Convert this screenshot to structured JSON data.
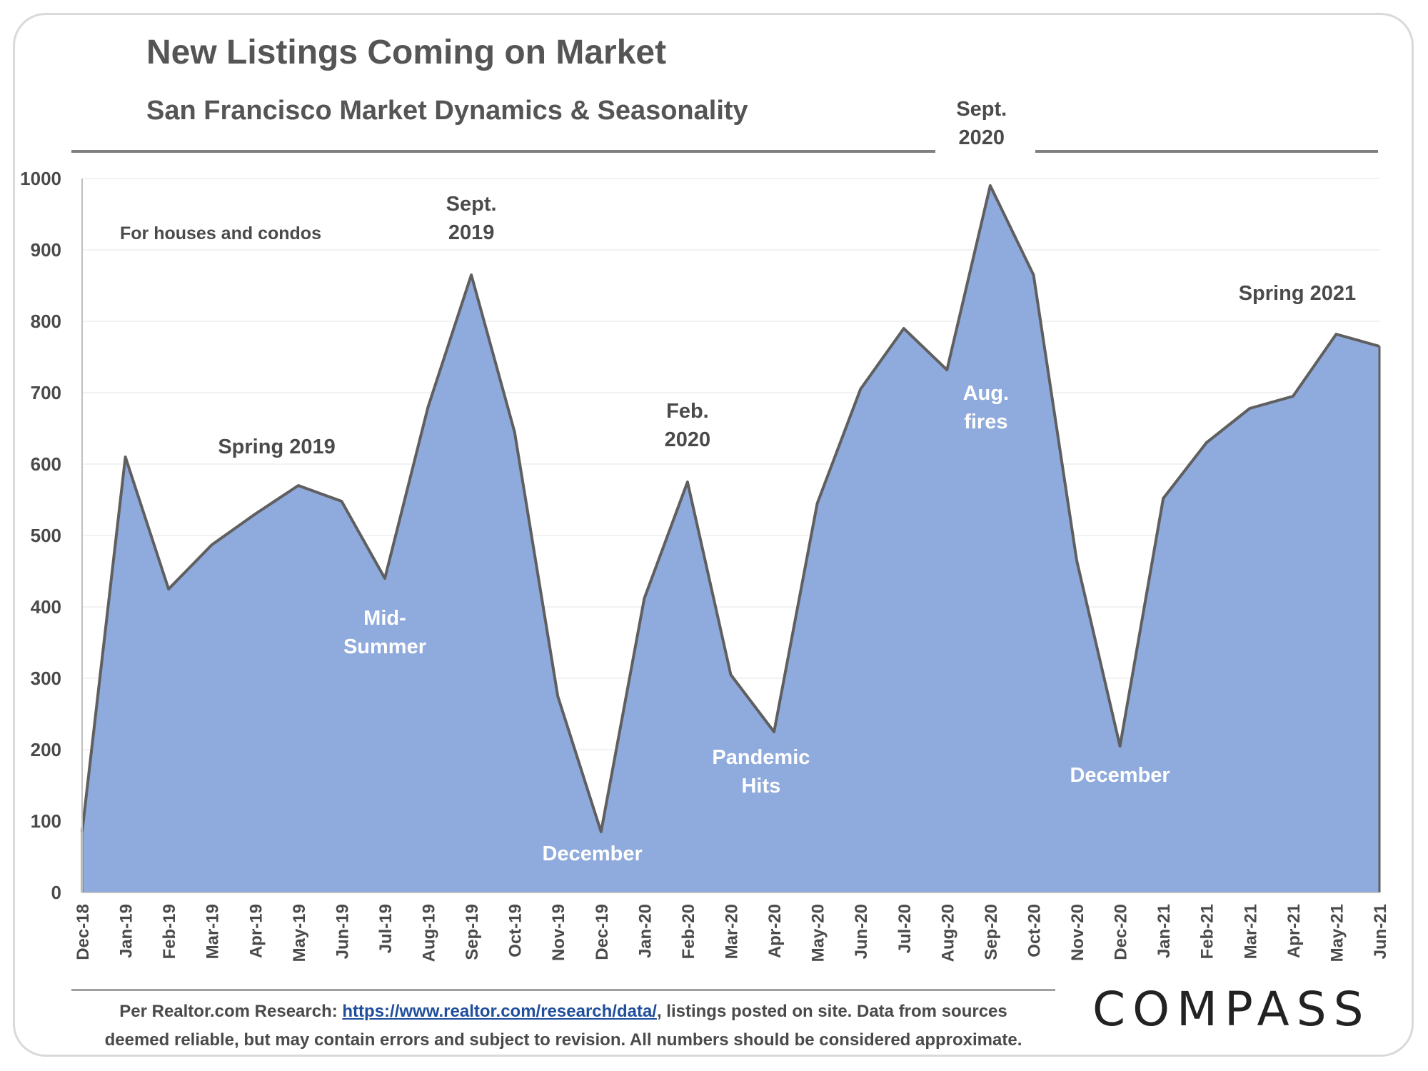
{
  "title": "New Listings Coming on Market",
  "subtitle": "San Francisco Market Dynamics & Seasonality",
  "note": "For houses and condos",
  "footer": {
    "prefix": "Per Realtor.com Research: ",
    "link": "https://www.realtor.com/research/data/",
    "line1_suffix": ", listings posted on site. Data from sources",
    "line2": "deemed reliable, but may contain errors and subject to revision. All numbers should be considered approximate."
  },
  "logo": "COMPASS",
  "colors": {
    "area_fill": "#8faadc",
    "area_stroke": "#5f5f5f",
    "rule": "#808080"
  },
  "chart_data": {
    "type": "area",
    "categories": [
      "Dec-18",
      "Jan-19",
      "Feb-19",
      "Mar-19",
      "Apr-19",
      "May-19",
      "Jun-19",
      "Jul-19",
      "Aug-19",
      "Sep-19",
      "Oct-19",
      "Nov-19",
      "Dec-19",
      "Jan-20",
      "Feb-20",
      "Mar-20",
      "Apr-20",
      "May-20",
      "Jun-20",
      "Jul-20",
      "Aug-20",
      "Sep-20",
      "Oct-20",
      "Nov-20",
      "Dec-20",
      "Jan-21",
      "Feb-21",
      "Mar-21",
      "Apr-21",
      "May-21",
      "Jun-21"
    ],
    "values": [
      85,
      610,
      425,
      487,
      530,
      570,
      548,
      440,
      680,
      865,
      645,
      275,
      85,
      412,
      575,
      305,
      225,
      545,
      705,
      790,
      732,
      990,
      865,
      465,
      205,
      552,
      630,
      678,
      695,
      782,
      765
    ],
    "ylim": [
      0,
      1000
    ],
    "yticks": [
      0,
      100,
      200,
      300,
      400,
      500,
      600,
      700,
      800,
      900,
      1000
    ],
    "grid": true,
    "annotations": [
      {
        "text": "Spring 2019",
        "index": 4.5,
        "value": 615,
        "color": "dark"
      },
      {
        "text": "Sept.\n2019",
        "index": 9,
        "value": 955,
        "color": "dark"
      },
      {
        "text": "Mid-\nSummer",
        "index": 7,
        "value": 375,
        "color": "light"
      },
      {
        "text": "December",
        "index": 11.8,
        "value": 45,
        "color": "light"
      },
      {
        "text": "Feb.\n2020",
        "index": 14,
        "value": 665,
        "color": "dark"
      },
      {
        "text": "Pandemic\nHits",
        "index": 15.7,
        "value": 180,
        "color": "light"
      },
      {
        "text": "Aug.\nfires",
        "index": 20.9,
        "value": 690,
        "color": "light"
      },
      {
        "text": "Sept.\n2020",
        "index": 20.8,
        "value": 1088,
        "color": "dark"
      },
      {
        "text": "December",
        "index": 24,
        "value": 155,
        "color": "light"
      },
      {
        "text": "Spring 2021",
        "index": 28.1,
        "value": 830,
        "color": "dark"
      }
    ]
  }
}
